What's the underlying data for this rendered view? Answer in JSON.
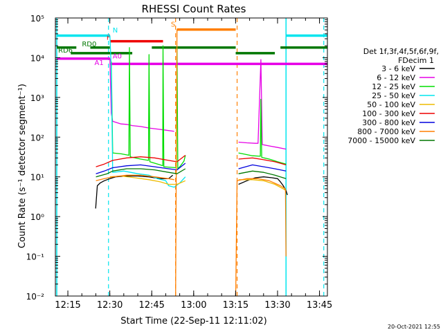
{
  "chart_data": {
    "type": "line",
    "title": "RHESSI Count Rates",
    "xlabel": "Start Time (22-Sep-11 12:11:02)",
    "ylabel": "Count Rate (s⁻¹ detector segment⁻¹)",
    "y_scale": "log",
    "ylim": [
      0.01,
      100000
    ],
    "xlim_minutes_from_start": [
      -0.5,
      96.8
    ],
    "x_ticks": [
      "12:15",
      "12:30",
      "12:45",
      "13:00",
      "13:15",
      "13:30",
      "13:45"
    ],
    "y_ticks": [
      "10⁻²",
      "10⁻¹",
      "10⁰",
      "10¹",
      "10²",
      "10³",
      "10⁴",
      "10⁵"
    ],
    "legend": {
      "placement": "right",
      "header": [
        "Det 1f,3f,4f,5f,6f,9f,",
        "FDecim 1"
      ],
      "entries": [
        {
          "label": "3 - 6 keV",
          "color": "#000000"
        },
        {
          "label": "6 - 12 keV",
          "color": "#e600e6"
        },
        {
          "label": "12 - 25 keV",
          "color": "#00dd00"
        },
        {
          "label": "25 - 50 keV",
          "color": "#00e5ee"
        },
        {
          "label": "50 - 100 keV",
          "color": "#eebb00"
        },
        {
          "label": "100 - 300 keV",
          "color": "#ee0000"
        },
        {
          "label": "300 - 800 keV",
          "color": "#0000dd"
        },
        {
          "label": "800 - 7000 keV",
          "color": "#ff7f00"
        },
        {
          "label": "7000 - 15000 keV",
          "color": "#007700"
        }
      ]
    },
    "series": [
      {
        "name": "3 - 6 keV",
        "color": "#000000",
        "segments": [
          [
            [
              13.9,
              1.6
            ],
            [
              14.5,
              6
            ],
            [
              15.5,
              7
            ],
            [
              17,
              8
            ],
            [
              18,
              8.5
            ],
            [
              19,
              9
            ]
          ],
          [
            [
              19,
              9
            ],
            [
              21,
              10
            ],
            [
              25,
              10.5
            ],
            [
              29,
              10.5
            ],
            [
              33,
              10
            ],
            [
              37,
              9
            ],
            [
              40,
              9
            ],
            [
              41.5,
              11
            ]
          ],
          [
            [
              65,
              6.5
            ],
            [
              68,
              8
            ],
            [
              71,
              9.5
            ],
            [
              74,
              10
            ],
            [
              77,
              9.5
            ],
            [
              79,
              9
            ],
            [
              80,
              7.5
            ],
            [
              81,
              6
            ],
            [
              82,
              4.5
            ],
            [
              82.5,
              3.5
            ]
          ]
        ]
      },
      {
        "name": "6 - 12 keV",
        "color": "#e600e6",
        "segments": [
          [
            [
              0,
              9500
            ],
            [
              19,
              9500
            ]
          ],
          [
            [
              19,
              9500
            ],
            [
              19.5,
              400
            ],
            [
              20,
              250
            ],
            [
              23,
              215
            ],
            [
              25,
              210
            ],
            [
              27,
              195
            ],
            [
              30,
              185
            ],
            [
              33,
              170
            ],
            [
              36,
              160
            ],
            [
              39,
              150
            ],
            [
              42,
              140
            ]
          ],
          [
            [
              65,
              75
            ],
            [
              68,
              72
            ],
            [
              71,
              70
            ],
            [
              72,
              70
            ],
            [
              73,
              9000
            ],
            [
              73.5,
              65
            ],
            [
              76,
              60
            ],
            [
              79,
              55
            ],
            [
              82,
              50
            ]
          ],
          [
            [
              82,
              7000
            ],
            [
              96.8,
              7000
            ]
          ]
        ]
      },
      {
        "name": "12 - 25 keV",
        "color": "#00dd00",
        "segments": [
          [
            [
              19.5,
              8000
            ],
            [
              20,
              40
            ],
            [
              23,
              38
            ],
            [
              25.8,
              35
            ],
            [
              26,
              18000
            ],
            [
              26.3,
              32
            ],
            [
              30,
              28
            ],
            [
              32.8,
              26
            ],
            [
              33,
              12000
            ],
            [
              33.3,
              24
            ],
            [
              37,
              20
            ],
            [
              37.9,
              19
            ],
            [
              38,
              20000
            ],
            [
              38.3,
              18
            ],
            [
              42.7,
              17
            ],
            [
              43,
              19000
            ],
            [
              43.3,
              16
            ],
            [
              44,
              18
            ],
            [
              45.5,
              25
            ],
            [
              46,
              35
            ]
          ],
          [
            [
              65,
              40
            ],
            [
              70,
              34
            ],
            [
              72.8,
              33
            ],
            [
              73,
              900
            ],
            [
              73.3,
              31
            ],
            [
              76,
              28
            ],
            [
              79,
              24
            ],
            [
              82,
              21
            ]
          ]
        ]
      },
      {
        "name": "25 - 50 keV",
        "color": "#00e5ee",
        "segments": [
          [
            [
              0,
              36000
            ],
            [
              19,
              36000
            ]
          ],
          [
            [
              19,
              36000
            ],
            [
              19.5,
              5000
            ],
            [
              20,
              13
            ],
            [
              24,
              14
            ],
            [
              29,
              12
            ],
            [
              33,
              11
            ],
            [
              36,
              9
            ],
            [
              39,
              8
            ],
            [
              40,
              6
            ],
            [
              42,
              5.5
            ],
            [
              44,
              7
            ],
            [
              46,
              10
            ]
          ],
          [
            [
              82,
              36000
            ],
            [
              96.8,
              36000
            ]
          ]
        ]
      },
      {
        "name": "50 - 100 keV",
        "color": "#eebb00",
        "segments": [
          [
            [
              19,
              10
            ],
            [
              23,
              10.5
            ],
            [
              28,
              9.5
            ],
            [
              33,
              8.5
            ],
            [
              37,
              7.5
            ],
            [
              40,
              6.5
            ],
            [
              43,
              6.5
            ],
            [
              46,
              8
            ]
          ],
          [
            [
              65,
              8.5
            ],
            [
              70,
              8.5
            ],
            [
              74,
              8
            ],
            [
              78,
              6.5
            ],
            [
              81,
              5
            ],
            [
              82,
              4.5
            ]
          ]
        ]
      },
      {
        "name": "100 - 300 keV",
        "color": "#ee0000",
        "segments": [
          [
            [
              14,
              18
            ],
            [
              17,
              21
            ],
            [
              20,
              26
            ],
            [
              25,
              30
            ],
            [
              30,
              32
            ],
            [
              35,
              30
            ],
            [
              40,
              26
            ],
            [
              43,
              24
            ],
            [
              46,
              35
            ]
          ],
          [
            [
              65,
              28
            ],
            [
              70,
              30
            ],
            [
              74,
              27
            ],
            [
              78,
              24
            ],
            [
              82,
              20
            ]
          ]
        ]
      },
      {
        "name": "300 - 800 keV",
        "color": "#0000dd",
        "segments": [
          [
            [
              14,
              12
            ],
            [
              17,
              14
            ],
            [
              20,
              17
            ],
            [
              25,
              19
            ],
            [
              30,
              20
            ],
            [
              35,
              18
            ],
            [
              40,
              16
            ],
            [
              43,
              15
            ],
            [
              46,
              22
            ]
          ],
          [
            [
              65,
              16
            ],
            [
              70,
              20
            ],
            [
              74,
              18
            ],
            [
              78,
              16
            ],
            [
              82,
              14
            ]
          ]
        ]
      },
      {
        "name": "800 - 7000 keV",
        "color": "#ff7f00",
        "segments": [
          [
            [
              14,
              8
            ],
            [
              17,
              9
            ],
            [
              20,
              10
            ],
            [
              25,
              11
            ],
            [
              30,
              11
            ],
            [
              35,
              10
            ],
            [
              40,
              9
            ],
            [
              42,
              8.5
            ]
          ],
          [
            [
              42.5,
              0.01
            ],
            [
              43,
              51000
            ],
            [
              64,
              51000
            ]
          ],
          [
            [
              64,
              0.01
            ],
            [
              64.5,
              8
            ],
            [
              68,
              9
            ],
            [
              72,
              9
            ],
            [
              76,
              8
            ],
            [
              80,
              6
            ],
            [
              81.8,
              5
            ],
            [
              82,
              0.1
            ]
          ]
        ]
      },
      {
        "name": "7000 - 15000 keV",
        "color": "#007700",
        "segments": [
          [
            [
              14,
              10
            ],
            [
              18,
              12
            ],
            [
              20,
              14
            ],
            [
              25,
              16
            ],
            [
              30,
              16
            ],
            [
              35,
              15
            ],
            [
              40,
              13
            ],
            [
              43,
              12
            ],
            [
              46,
              16
            ]
          ],
          [
            [
              65,
              12
            ],
            [
              70,
              14
            ],
            [
              74,
              13
            ],
            [
              78,
              11
            ],
            [
              82,
              9
            ]
          ]
        ]
      }
    ],
    "vertical_markers": [
      {
        "x": 18.5,
        "color": "#00e5ee",
        "style": "dashed"
      },
      {
        "x": 42.5,
        "color": "#ff7f00",
        "style": "dashed"
      },
      {
        "x": 64.5,
        "color": "#ff7f00",
        "style": "dashed"
      },
      {
        "x": 95.5,
        "color": "#00e5ee",
        "style": "dashed"
      }
    ],
    "flag_bars": [
      {
        "label": "N",
        "color": "#00e5ee",
        "x0": 0,
        "x1": 19,
        "y": 36000,
        "text_x": 20,
        "text_y": 43000
      },
      {
        "label": "",
        "color": "#00e5ee",
        "x0": 82,
        "x1": 96.8,
        "y": 36000
      },
      {
        "label": "S",
        "color": "#ff7f00",
        "x0": 43,
        "x1": 64,
        "y": 51000,
        "text_x": 40.8,
        "text_y": 60000
      },
      {
        "label": "F",
        "color": "#ee0000",
        "x0": 19,
        "x1": 38,
        "y": 26000,
        "text_x": 17.8,
        "text_y": 28000
      },
      {
        "label": "RD0",
        "color": "#007700",
        "x0": 0,
        "x1": 7,
        "y": 18000,
        "text_x": 9,
        "text_y": 19500
      },
      {
        "label": "",
        "color": "#007700",
        "x0": 12,
        "x1": 19,
        "y": 18000
      },
      {
        "label": "",
        "color": "#007700",
        "x0": 34,
        "x1": 64,
        "y": 18000
      },
      {
        "label": "",
        "color": "#007700",
        "x0": 64,
        "x1": 78,
        "y": 13000
      },
      {
        "label": "",
        "color": "#007700",
        "x0": 80,
        "x1": 96.8,
        "y": 18000
      },
      {
        "label": "RD6",
        "color": "#007700",
        "x0": 5,
        "x1": 27,
        "y": 13000,
        "text_x": 0.5,
        "text_y": 13500
      },
      {
        "label": "A0",
        "color": "#e600e6",
        "x0": 19,
        "x1": 96.8,
        "y": 7000,
        "text_x": 20,
        "text_y": 9500
      },
      {
        "label": "A1",
        "color": "#e600e6",
        "x0": 0,
        "x1": 19,
        "y": 9500,
        "text_x": 13.5,
        "text_y": 6500
      }
    ],
    "solid_verticals": [
      {
        "x": 0,
        "color": "#00e5ee"
      },
      {
        "x": 82,
        "color": "#00e5ee"
      }
    ],
    "footer_timestamp": "20-Oct-2021 12:55"
  }
}
